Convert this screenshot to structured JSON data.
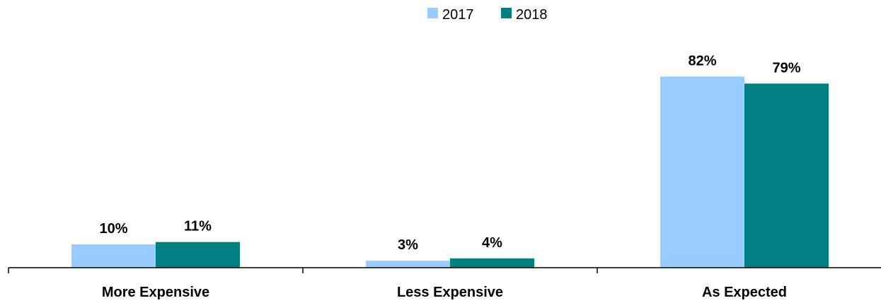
{
  "chart_data": {
    "type": "bar",
    "categories": [
      "More Expensive",
      "Less Expensive",
      "As Expected"
    ],
    "series": [
      {
        "name": "2017",
        "values": [
          10,
          3,
          82
        ],
        "labels": [
          "10%",
          "3%",
          "82%"
        ],
        "color": "#99ccff"
      },
      {
        "name": "2018",
        "values": [
          11,
          4,
          79
        ],
        "labels": [
          "11%",
          "4%",
          "79%"
        ],
        "color": "#008080"
      }
    ],
    "value_suffix": "%",
    "ylim": [
      0,
      100
    ],
    "legend_position": "top-center",
    "grid": false
  }
}
